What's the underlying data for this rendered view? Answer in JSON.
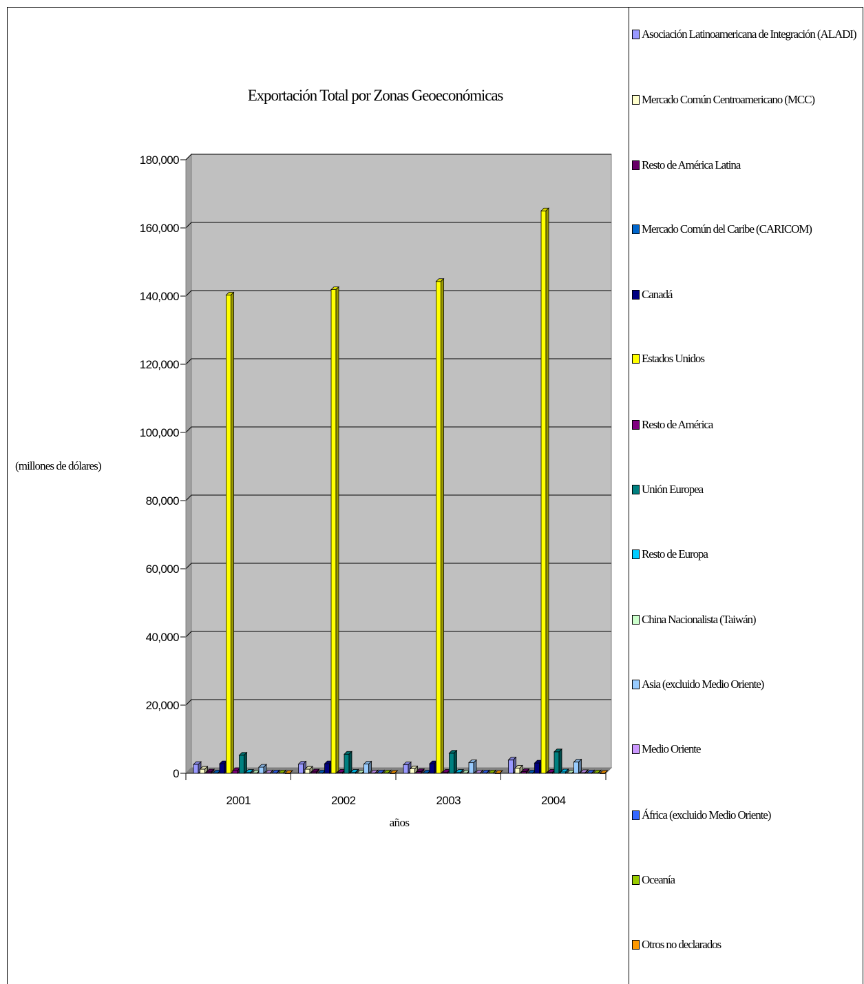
{
  "chart_data": {
    "type": "bar",
    "title": "Exportación Total por Zonas Geoeconómicas",
    "xlabel": "años",
    "ylabel": "(millones de dólares)",
    "ylim": [
      0,
      180000
    ],
    "yticks": [
      "0",
      "20,000",
      "40,000",
      "60,000",
      "80,000",
      "100,000",
      "120,000",
      "140,000",
      "160,000",
      "180,000"
    ],
    "categories": [
      "2001",
      "2002",
      "2003",
      "2004"
    ],
    "grid": true,
    "legend_position": "right",
    "plot_background": "#c0c0c0",
    "series": [
      {
        "name": "Asociación Latinoamericana de Integración (ALADI)",
        "color": "#9999ff",
        "values": [
          2600,
          2700,
          2500,
          3900
        ]
      },
      {
        "name": "Mercado Común Centroamericano (MCC)",
        "color": "#ffffcc",
        "values": [
          1200,
          1200,
          1300,
          1500
        ]
      },
      {
        "name": "Resto de América Latina",
        "color": "#660066",
        "values": [
          400,
          400,
          500,
          500
        ]
      },
      {
        "name": "Mercado Común del Caribe (CARICOM)",
        "color": "#0066cc",
        "values": [
          100,
          100,
          100,
          100
        ]
      },
      {
        "name": "Canadá",
        "color": "#000080",
        "values": [
          2800,
          2800,
          2800,
          3000
        ]
      },
      {
        "name": "Estados Unidos",
        "color": "#ffff00",
        "values": [
          140300,
          141900,
          144300,
          165000
        ]
      },
      {
        "name": "Resto de América",
        "color": "#800080",
        "values": [
          800,
          300,
          300,
          300
        ]
      },
      {
        "name": "Unión Europea",
        "color": "#008080",
        "values": [
          5300,
          5600,
          5900,
          6300
        ]
      },
      {
        "name": "Resto de Europa",
        "color": "#00ccff",
        "values": [
          300,
          300,
          300,
          400
        ]
      },
      {
        "name": "China Nacionalista (Taiwán)",
        "color": "#ccffcc",
        "values": [
          100,
          100,
          100,
          100
        ]
      },
      {
        "name": "Asia (excluido Medio Oriente)",
        "color": "#99ccff",
        "values": [
          1800,
          2700,
          3100,
          3300
        ]
      },
      {
        "name": "Medio Oriente",
        "color": "#cc99ff",
        "values": [
          100,
          100,
          100,
          200
        ]
      },
      {
        "name": "África (excluido Medio Oriente)",
        "color": "#3366ff",
        "values": [
          100,
          100,
          100,
          100
        ]
      },
      {
        "name": "Oceanía",
        "color": "#99cc00",
        "values": [
          100,
          100,
          100,
          100
        ]
      },
      {
        "name": "Otros no declarados",
        "color": "#ff9900",
        "values": [
          0,
          0,
          0,
          0
        ]
      }
    ]
  }
}
